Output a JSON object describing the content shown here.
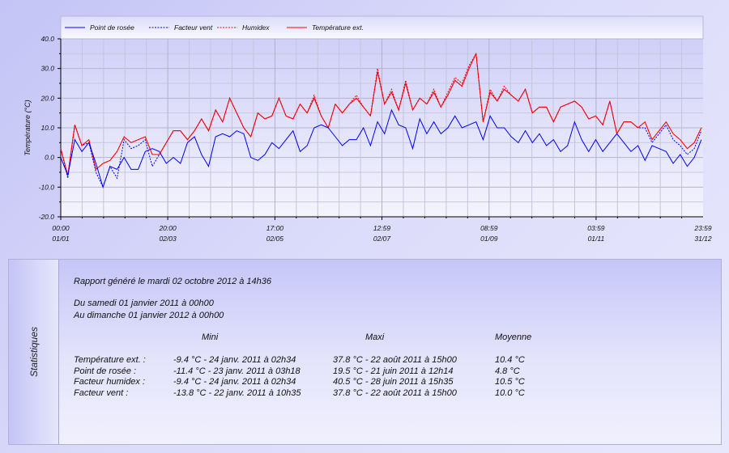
{
  "chart_data": {
    "type": "line",
    "ylabel": "Température (°C)",
    "ylim": [
      -20,
      40
    ],
    "yticks": [
      "40.0",
      "30.0",
      "20.0",
      "10.0",
      "0.0",
      "-10.0",
      "-20.0"
    ],
    "xticks": [
      {
        "time": "00:00",
        "date": "01/01",
        "day": 0
      },
      {
        "time": "20:00",
        "date": "02/03",
        "day": 60.8
      },
      {
        "time": "17:00",
        "date": "02/05",
        "day": 121.7
      },
      {
        "time": "12:59",
        "date": "02/07",
        "day": 182.5
      },
      {
        "time": "08:59",
        "date": "01/09",
        "day": 243.4
      },
      {
        "time": "03:59",
        "date": "01/11",
        "day": 304.2
      },
      {
        "time": "23:59",
        "date": "31/12",
        "day": 365
      }
    ],
    "grid": true,
    "legend_position": "top",
    "x_days": "0,4,8,...,364",
    "series": [
      {
        "name": "Point de rosée",
        "color": "#0000ff",
        "style": "solid",
        "values": [
          0,
          -6,
          6,
          2,
          5,
          -2,
          -10,
          -3,
          -4,
          0,
          -4,
          -4,
          2,
          3,
          2,
          -2,
          0,
          -2,
          5,
          7,
          1,
          -3,
          7,
          8,
          7,
          9,
          8,
          0,
          -1,
          1,
          5,
          3,
          6,
          9,
          2,
          4,
          10,
          11,
          10,
          7,
          4,
          6,
          6,
          10,
          4,
          12,
          8,
          16,
          11,
          10,
          3,
          13,
          8,
          12,
          8,
          10,
          14,
          10,
          11,
          12,
          6,
          14,
          10,
          10,
          7,
          5,
          9,
          5,
          8,
          4,
          6,
          2,
          4,
          12,
          6,
          2,
          6,
          2,
          5,
          8,
          5,
          2,
          4,
          -1,
          4,
          3,
          2,
          -2,
          1,
          -3,
          0,
          6
        ]
      },
      {
        "name": "Facteur vent",
        "color": "#0000ff",
        "style": "dotted",
        "values": [
          3,
          -7,
          11,
          4,
          5,
          -5,
          -10,
          -3,
          -7,
          6,
          3,
          4,
          6,
          -3,
          1,
          5,
          9,
          9,
          6,
          9,
          13,
          9,
          16,
          12,
          20,
          15,
          10,
          7,
          15,
          13,
          14,
          20,
          14,
          13,
          18,
          15,
          20,
          14,
          10,
          18,
          15,
          18,
          20,
          17,
          14,
          29,
          18,
          22,
          16,
          25,
          16,
          20,
          18,
          22,
          17,
          21,
          26,
          24,
          30,
          35,
          12,
          22,
          19,
          23,
          21,
          19,
          23,
          15,
          17,
          17,
          12,
          17,
          18,
          19,
          17,
          13,
          14,
          11,
          19,
          8,
          12,
          12,
          10,
          10,
          5,
          8,
          11,
          6,
          4,
          1,
          3,
          9
        ]
      },
      {
        "name": "Humidex",
        "color": "#ff0000",
        "style": "dotted",
        "values": [
          3,
          -6,
          11,
          4,
          6,
          -4,
          -2,
          -1,
          2,
          7,
          5,
          6,
          7,
          1,
          1,
          5,
          9,
          9,
          6,
          9,
          13,
          9,
          16,
          12,
          20,
          15,
          10,
          7,
          15,
          13,
          14,
          20,
          14,
          13,
          18,
          15,
          21,
          14,
          10,
          18,
          15,
          18,
          21,
          17,
          14,
          30,
          18,
          23,
          16,
          26,
          16,
          20,
          18,
          23,
          17,
          22,
          27,
          25,
          31,
          35,
          12,
          23,
          19,
          24,
          21,
          19,
          23,
          15,
          17,
          17,
          12,
          17,
          18,
          19,
          17,
          13,
          14,
          11,
          19,
          8,
          12,
          12,
          10,
          12,
          6,
          9,
          12,
          8,
          6,
          3,
          5,
          10
        ]
      },
      {
        "name": "Température ext.",
        "color": "#ff0000",
        "style": "solid",
        "values": [
          3,
          -6,
          11,
          4,
          6,
          -4,
          -2,
          -1,
          2,
          7,
          5,
          6,
          7,
          1,
          1,
          5,
          9,
          9,
          6,
          9,
          13,
          9,
          16,
          12,
          20,
          15,
          10,
          7,
          15,
          13,
          14,
          20,
          14,
          13,
          18,
          15,
          20,
          14,
          10,
          18,
          15,
          18,
          20,
          17,
          14,
          29,
          18,
          22,
          16,
          25,
          16,
          20,
          18,
          22,
          17,
          21,
          26,
          24,
          30,
          35,
          12,
          22,
          19,
          23,
          21,
          19,
          23,
          15,
          17,
          17,
          12,
          17,
          18,
          19,
          17,
          13,
          14,
          11,
          19,
          8,
          12,
          12,
          10,
          12,
          6,
          9,
          12,
          8,
          6,
          3,
          5,
          10
        ]
      }
    ]
  },
  "stats": {
    "tab_label": "Statistiques",
    "generated": "Rapport généré le mardi 02 octobre 2012 à 14h36",
    "from": "Du samedi 01 janvier 2011 à 00h00",
    "to": "Au dimanche 01 janvier 2012 à 00h00",
    "headers": {
      "mini": "Mini",
      "maxi": "Maxi",
      "moyenne": "Moyenne"
    },
    "rows": [
      {
        "label": "Température ext. :",
        "mini": "-9.4 °C - 24 janv. 2011 à 02h34",
        "maxi": "37.8 °C - 22 août 2011 à 15h00",
        "moyenne": "10.4 °C"
      },
      {
        "label": "Point de rosée :",
        "mini": "-11.4 °C - 23 janv. 2011 à 03h18",
        "maxi": "19.5 °C - 21 juin 2011 à 12h14",
        "moyenne": "4.8 °C"
      },
      {
        "label": "Facteur humidex :",
        "mini": "-9.4 °C - 24 janv. 2011 à 02h34",
        "maxi": "40.5 °C - 28 juin 2011 à 15h35",
        "moyenne": "10.5 °C"
      },
      {
        "label": "Facteur vent :",
        "mini": "-13.8 °C - 22 janv. 2011 à 10h35",
        "maxi": "37.8 °C - 22 août 2011 à 15h00",
        "moyenne": "10.0 °C"
      }
    ]
  }
}
